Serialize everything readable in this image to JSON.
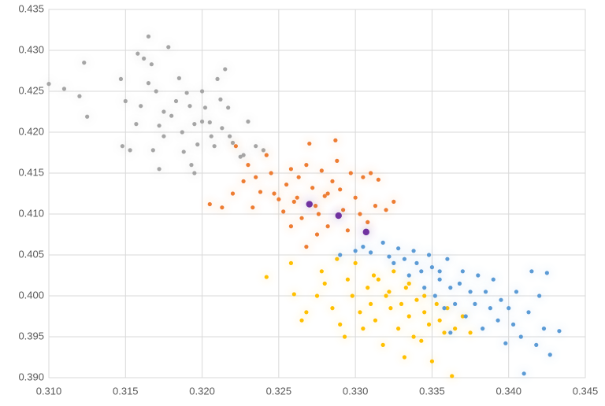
{
  "chart_data": {
    "type": "scatter",
    "xlim": [
      0.31,
      0.345
    ],
    "xticks": [
      {
        "value": 0.31,
        "label": "0.310"
      },
      {
        "value": 0.315,
        "label": "0.315"
      },
      {
        "value": 0.32,
        "label": "0.320"
      },
      {
        "value": 0.325,
        "label": "0.325"
      },
      {
        "value": 0.33,
        "label": "0.330"
      },
      {
        "value": 0.335,
        "label": "0.335"
      },
      {
        "value": 0.34,
        "label": "0.340"
      },
      {
        "value": 0.345,
        "label": "0.345"
      }
    ],
    "ylim": [
      0.39,
      0.435
    ],
    "yticks": [
      {
        "value": 0.39,
        "label": "0.390"
      },
      {
        "value": 0.395,
        "label": "0.395"
      },
      {
        "value": 0.4,
        "label": "0.400"
      },
      {
        "value": 0.405,
        "label": "0.405"
      },
      {
        "value": 0.41,
        "label": "0.410"
      },
      {
        "value": 0.415,
        "label": "0.415"
      },
      {
        "value": 0.42,
        "label": "0.420"
      },
      {
        "value": 0.425,
        "label": "0.425"
      },
      {
        "value": 0.43,
        "label": "0.430"
      },
      {
        "value": 0.435,
        "label": "0.435"
      }
    ],
    "grid": true,
    "series": [
      {
        "color": "#a5a5a5",
        "x": [
          0.31,
          0.311,
          0.3123,
          0.312,
          0.3125,
          0.3147,
          0.315,
          0.3148,
          0.3153,
          0.3158,
          0.316,
          0.3162,
          0.3165,
          0.3167,
          0.317,
          0.3172,
          0.3175,
          0.3178,
          0.318,
          0.3185,
          0.3187,
          0.319,
          0.3192,
          0.3195,
          0.3197,
          0.32,
          0.3202,
          0.3205,
          0.3208,
          0.321,
          0.3213,
          0.3215,
          0.3218,
          0.322,
          0.3225,
          0.323,
          0.3235,
          0.324,
          0.3172,
          0.3188,
          0.3195,
          0.3175,
          0.3183,
          0.3165,
          0.3168,
          0.32,
          0.3193,
          0.3157,
          0.3212,
          0.3206,
          0.3227,
          0.3217
        ],
        "values": [
          0.4259,
          0.4253,
          0.4285,
          0.4244,
          0.4219,
          0.4265,
          0.4238,
          0.4183,
          0.4178,
          0.4296,
          0.4232,
          0.429,
          0.4317,
          0.4283,
          0.425,
          0.4208,
          0.4195,
          0.4304,
          0.422,
          0.4266,
          0.42,
          0.4248,
          0.4232,
          0.421,
          0.4185,
          0.425,
          0.423,
          0.4212,
          0.4183,
          0.4265,
          0.4205,
          0.4277,
          0.4195,
          0.4187,
          0.417,
          0.4213,
          0.4183,
          0.4178,
          0.4155,
          0.4176,
          0.415,
          0.4225,
          0.4238,
          0.426,
          0.4178,
          0.4213,
          0.416,
          0.421,
          0.424,
          0.4195,
          0.4172,
          0.423
        ]
      },
      {
        "color": "#ed7d31",
        "x": [
          0.3205,
          0.3213,
          0.322,
          0.3222,
          0.3227,
          0.323,
          0.3235,
          0.3233,
          0.3238,
          0.3242,
          0.3245,
          0.3247,
          0.325,
          0.3253,
          0.3255,
          0.3258,
          0.326,
          0.3263,
          0.3265,
          0.3268,
          0.327,
          0.3272,
          0.3274,
          0.3276,
          0.3278,
          0.328,
          0.3282,
          0.3285,
          0.3287,
          0.3288,
          0.329,
          0.3292,
          0.3295,
          0.3297,
          0.33,
          0.3303,
          0.3305,
          0.3308,
          0.331,
          0.3313,
          0.3315,
          0.332,
          0.3325,
          0.3275,
          0.3268,
          0.3262,
          0.3282,
          0.3258
        ],
        "values": [
          0.4112,
          0.4108,
          0.4125,
          0.4183,
          0.414,
          0.416,
          0.4145,
          0.4108,
          0.4127,
          0.4172,
          0.415,
          0.4125,
          0.4118,
          0.4103,
          0.4136,
          0.4155,
          0.4115,
          0.4145,
          0.4095,
          0.416,
          0.4186,
          0.4132,
          0.411,
          0.41,
          0.4153,
          0.4122,
          0.4085,
          0.414,
          0.419,
          0.4165,
          0.413,
          0.4105,
          0.408,
          0.415,
          0.412,
          0.41,
          0.4145,
          0.409,
          0.415,
          0.411,
          0.4142,
          0.4105,
          0.4115,
          0.4075,
          0.406,
          0.412,
          0.4125,
          0.4085
        ]
      },
      {
        "color": "#ffc000",
        "x": [
          0.3242,
          0.3258,
          0.326,
          0.3265,
          0.3268,
          0.3275,
          0.3278,
          0.328,
          0.3285,
          0.3288,
          0.329,
          0.3293,
          0.3295,
          0.3298,
          0.33,
          0.3303,
          0.3305,
          0.3308,
          0.331,
          0.3313,
          0.3315,
          0.3318,
          0.332,
          0.3323,
          0.3325,
          0.3328,
          0.333,
          0.3333,
          0.3335,
          0.3338,
          0.334,
          0.3343,
          0.3345,
          0.3348,
          0.335,
          0.3353,
          0.3355,
          0.3358,
          0.336,
          0.3363,
          0.3365,
          0.337,
          0.3375,
          0.3332,
          0.3322,
          0.3312,
          0.3335,
          0.3345
        ],
        "values": [
          0.4023,
          0.404,
          0.4002,
          0.397,
          0.398,
          0.4,
          0.403,
          0.4015,
          0.3985,
          0.4045,
          0.3965,
          0.395,
          0.402,
          0.4,
          0.404,
          0.398,
          0.396,
          0.401,
          0.399,
          0.397,
          0.402,
          0.394,
          0.4,
          0.3985,
          0.403,
          0.396,
          0.399,
          0.401,
          0.3975,
          0.395,
          0.3995,
          0.3945,
          0.398,
          0.3965,
          0.392,
          0.399,
          0.397,
          0.3955,
          0.3985,
          0.3902,
          0.396,
          0.3975,
          0.3955,
          0.3925,
          0.4005,
          0.4025,
          0.4015,
          0.4
        ]
      },
      {
        "color": "#5b9bd5",
        "x": [
          0.329,
          0.33,
          0.3305,
          0.331,
          0.3318,
          0.3322,
          0.3325,
          0.3328,
          0.3332,
          0.3335,
          0.3338,
          0.334,
          0.3343,
          0.3345,
          0.3348,
          0.335,
          0.3352,
          0.3355,
          0.3358,
          0.336,
          0.3362,
          0.3365,
          0.3368,
          0.337,
          0.3372,
          0.3375,
          0.3378,
          0.338,
          0.3383,
          0.3385,
          0.3388,
          0.339,
          0.3393,
          0.3395,
          0.3398,
          0.34,
          0.3403,
          0.3405,
          0.3408,
          0.341,
          0.3413,
          0.3415,
          0.3418,
          0.342,
          0.3423,
          0.3425,
          0.3427,
          0.3433,
          0.3355,
          0.3362
        ],
        "values": [
          0.405,
          0.4055,
          0.406,
          0.4053,
          0.4065,
          0.4048,
          0.404,
          0.4058,
          0.4045,
          0.4025,
          0.4055,
          0.404,
          0.403,
          0.401,
          0.405,
          0.4035,
          0.4,
          0.402,
          0.3985,
          0.4045,
          0.401,
          0.399,
          0.4015,
          0.403,
          0.3975,
          0.4005,
          0.399,
          0.4025,
          0.396,
          0.4005,
          0.3985,
          0.402,
          0.397,
          0.3995,
          0.3942,
          0.3985,
          0.3965,
          0.4005,
          0.395,
          0.3905,
          0.398,
          0.403,
          0.394,
          0.4,
          0.396,
          0.4028,
          0.3928,
          0.3957,
          0.403,
          0.3955
        ]
      },
      {
        "color": "#7030a0",
        "size": "large",
        "x": [
          0.327,
          0.3289,
          0.3307
        ],
        "values": [
          0.4112,
          0.4098,
          0.4078
        ]
      }
    ]
  }
}
